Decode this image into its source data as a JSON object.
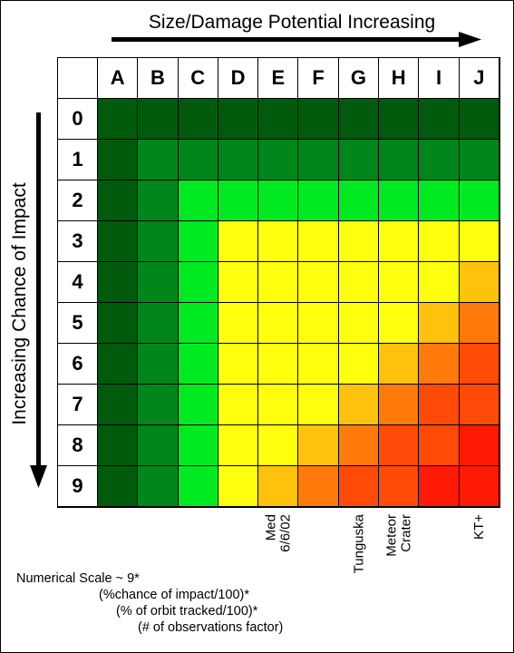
{
  "top_title": "Size/Damage Potential Increasing",
  "side_title": "Increasing Chance of Impact",
  "columns": [
    "A",
    "B",
    "C",
    "D",
    "E",
    "F",
    "G",
    "H",
    "I",
    "J"
  ],
  "rows": [
    "0",
    "1",
    "2",
    "3",
    "4",
    "5",
    "6",
    "7",
    "8",
    "9"
  ],
  "palette": {
    "dark": "#005a0c",
    "medium": "#00861a",
    "bright": "#00ea22",
    "yellow": "#ffff0d",
    "gold": "#ffc20c",
    "orange": "#ff7a0a",
    "redorange": "#ff4a08",
    "red": "#ff1a05"
  },
  "matrix": [
    [
      "dark",
      "dark",
      "dark",
      "dark",
      "dark",
      "dark",
      "dark",
      "dark",
      "dark",
      "dark"
    ],
    [
      "dark",
      "medium",
      "medium",
      "medium",
      "medium",
      "medium",
      "medium",
      "medium",
      "medium",
      "medium"
    ],
    [
      "dark",
      "medium",
      "bright",
      "bright",
      "bright",
      "bright",
      "bright",
      "bright",
      "bright",
      "bright"
    ],
    [
      "dark",
      "medium",
      "bright",
      "yellow",
      "yellow",
      "yellow",
      "yellow",
      "yellow",
      "yellow",
      "yellow"
    ],
    [
      "dark",
      "medium",
      "bright",
      "yellow",
      "yellow",
      "yellow",
      "yellow",
      "yellow",
      "yellow",
      "gold"
    ],
    [
      "dark",
      "medium",
      "bright",
      "yellow",
      "yellow",
      "yellow",
      "yellow",
      "yellow",
      "gold",
      "orange"
    ],
    [
      "dark",
      "medium",
      "bright",
      "yellow",
      "yellow",
      "yellow",
      "yellow",
      "gold",
      "orange",
      "redorange"
    ],
    [
      "dark",
      "medium",
      "bright",
      "yellow",
      "yellow",
      "yellow",
      "gold",
      "orange",
      "redorange",
      "redorange"
    ],
    [
      "dark",
      "medium",
      "bright",
      "yellow",
      "yellow",
      "gold",
      "orange",
      "redorange",
      "redorange",
      "red"
    ],
    [
      "dark",
      "medium",
      "bright",
      "yellow",
      "gold",
      "orange",
      "redorange",
      "redorange",
      "red",
      "red"
    ]
  ],
  "annotations": [
    {
      "column": "E",
      "label": "Med\n6/6/02"
    },
    {
      "column": "G",
      "label": "Tunguska"
    },
    {
      "column": "H",
      "label": "Meteor\nCrater"
    },
    {
      "column": "J",
      "label": "KT+"
    }
  ],
  "formula": {
    "line1": "Numerical Scale ~ 9*",
    "line2": "(%chance of impact/100)*",
    "line3": "(% of orbit tracked/100)*",
    "line4": "(# of observations factor)"
  }
}
